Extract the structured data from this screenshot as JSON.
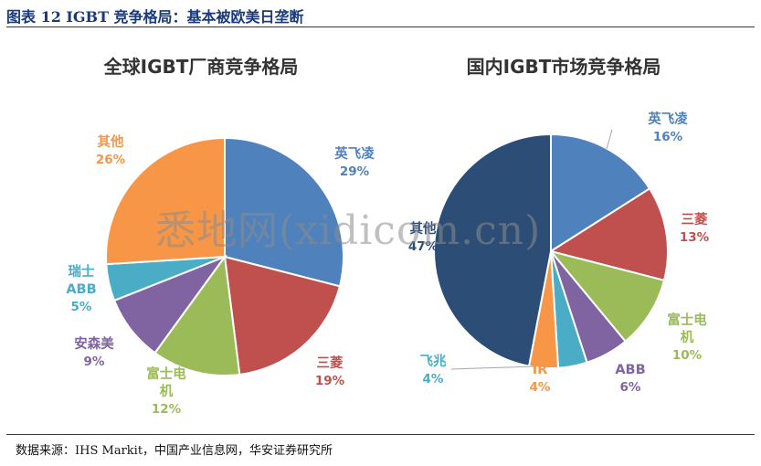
{
  "figure_title": "图表 12  IGBT 竞争格局：基本被欧美日垄断",
  "source": "数据来源：IHS Markit，中国产业信息网，华安证券研究所",
  "watermark": "悉地网(xidicom.cn)",
  "colors": {
    "blue": "#4f81bd",
    "red": "#c0504d",
    "green": "#9bbb59",
    "purple": "#8064a2",
    "cyan": "#4bacc6",
    "orange": "#f79646",
    "navy": "#2c4d75",
    "rule": "#1a3a7a"
  },
  "chart_data": [
    {
      "type": "pie",
      "title": "全球IGBT厂商竞争格局",
      "slices": [
        {
          "label": "英飞凌",
          "value": 29,
          "value_label": "29%",
          "color": "#4f81bd"
        },
        {
          "label": "三菱",
          "value": 19,
          "value_label": "19%",
          "color": "#c0504d"
        },
        {
          "label": "富士电机",
          "value": 12,
          "value_label": "12%",
          "color": "#9bbb59"
        },
        {
          "label": "安森美",
          "value": 9,
          "value_label": "9%",
          "color": "#8064a2"
        },
        {
          "label": "瑞士ABB",
          "value": 5,
          "value_label": "5%",
          "color": "#4bacc6"
        },
        {
          "label": "其他",
          "value": 26,
          "value_label": "26%",
          "color": "#f79646"
        }
      ]
    },
    {
      "type": "pie",
      "title": "国内IGBT市场竞争格局",
      "slices": [
        {
          "label": "英飞凌",
          "value": 16,
          "value_label": "16%",
          "color": "#4f81bd"
        },
        {
          "label": "三菱",
          "value": 13,
          "value_label": "13%",
          "color": "#c0504d"
        },
        {
          "label": "富士电机",
          "value": 10,
          "value_label": "10%",
          "color": "#9bbb59"
        },
        {
          "label": "ABB",
          "value": 6,
          "value_label": "6%",
          "color": "#8064a2"
        },
        {
          "label": "飞兆",
          "value": 4,
          "value_label": "4%",
          "color": "#4bacc6"
        },
        {
          "label": "IR",
          "value": 4,
          "value_label": "4%",
          "color": "#f79646"
        },
        {
          "label": "其他",
          "value": 47,
          "value_label": "47%",
          "color": "#2c4d75"
        }
      ]
    }
  ]
}
